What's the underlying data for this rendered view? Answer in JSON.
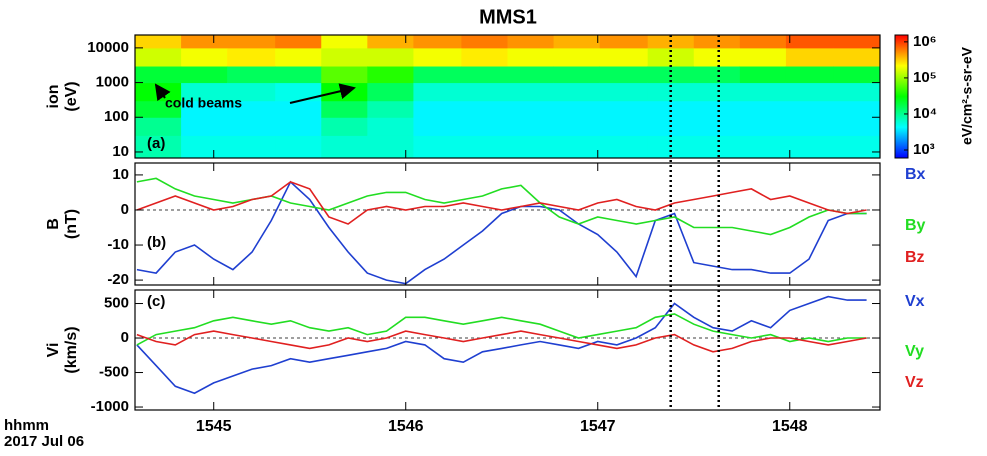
{
  "chart_data": [
    {
      "type": "spectrogram",
      "title": "MMS1",
      "panel_label": "(a)",
      "ylabel": [
        "ion",
        "(eV)"
      ],
      "ylog": true,
      "ylim": [
        6.7,
        23500
      ],
      "yticks": [
        10,
        100,
        1000,
        10000
      ],
      "annotation": "cold beams",
      "zlabel": "eV/cm²-s-sr-eV",
      "zlim": [
        600,
        1550000
      ],
      "zticks": [
        {
          "value": 1000,
          "label": "10³"
        },
        {
          "value": 10000,
          "label": "10⁴"
        },
        {
          "value": 100000,
          "label": "10⁵"
        },
        {
          "value": 1000000,
          "label": "10⁶"
        }
      ],
      "time_bins": [
        44.59,
        44.83,
        45.07,
        45.32,
        45.56,
        45.8,
        46.04,
        46.29,
        46.53,
        46.77,
        47.01,
        47.26,
        47.5,
        47.74,
        47.98,
        48.23,
        48.47
      ],
      "energy_bins": [
        6.7,
        30,
        100,
        300,
        1000,
        3000,
        10000,
        23500
      ],
      "flux": [
        [
          8000,
          10000,
          20000,
          30000,
          20000,
          150000,
          300000
        ],
        [
          5000,
          4000,
          4000,
          6000,
          20000,
          200000,
          500000
        ],
        [
          5000,
          4000,
          4000,
          6000,
          15000,
          250000,
          500000
        ],
        [
          5000,
          4000,
          4000,
          5000,
          15000,
          200000,
          600000
        ],
        [
          6000,
          8000,
          15000,
          30000,
          60000,
          150000,
          200000
        ],
        [
          6000,
          6000,
          8000,
          15000,
          40000,
          150000,
          400000
        ],
        [
          5000,
          4000,
          4000,
          6000,
          15000,
          200000,
          500000
        ],
        [
          5000,
          4000,
          4000,
          6000,
          15000,
          250000,
          600000
        ],
        [
          5000,
          4000,
          4000,
          6000,
          15000,
          200000,
          500000
        ],
        [
          5000,
          4000,
          4000,
          6000,
          15000,
          200000,
          400000
        ],
        [
          5000,
          4000,
          4000,
          6000,
          15000,
          200000,
          500000
        ],
        [
          5000,
          4000,
          4000,
          6000,
          15000,
          150000,
          400000
        ],
        [
          5000,
          4000,
          4000,
          6000,
          15000,
          200000,
          500000
        ],
        [
          5000,
          4000,
          4000,
          6000,
          20000,
          200000,
          600000
        ],
        [
          5000,
          4000,
          4000,
          6000,
          20000,
          300000,
          800000
        ],
        [
          5000,
          4000,
          4000,
          6000,
          20000,
          300000,
          800000
        ]
      ]
    },
    {
      "type": "line",
      "panel_label": "(b)",
      "ylabel": [
        "B",
        "(nT)"
      ],
      "ylim": [
        -21.4,
        13.4
      ],
      "yticks": [
        -20,
        -10,
        0,
        10
      ],
      "zero_line": true,
      "x": [
        44.6,
        44.7,
        44.8,
        44.9,
        45.0,
        45.1,
        45.2,
        45.3,
        45.4,
        45.5,
        45.6,
        45.7,
        45.8,
        45.9,
        46.0,
        46.1,
        46.2,
        46.3,
        46.4,
        46.5,
        46.6,
        46.7,
        46.8,
        46.9,
        47.0,
        47.1,
        47.2,
        47.3,
        47.4,
        47.5,
        47.6,
        47.7,
        47.8,
        47.9,
        48.0,
        48.1,
        48.2,
        48.3,
        48.4
      ],
      "series": [
        {
          "name": "Bx",
          "color": "#1f3fd0",
          "values": [
            -17,
            -18,
            -12,
            -10,
            -14,
            -17,
            -12,
            -3,
            8,
            3,
            -5,
            -12,
            -18,
            -20,
            -21,
            -17,
            -14,
            -10,
            -6,
            -1,
            1,
            1,
            0,
            -4,
            -7,
            -12,
            -19,
            -3,
            -1,
            -15,
            -16,
            -17,
            -17,
            -18,
            -18,
            -14,
            -3,
            -1,
            -1
          ]
        },
        {
          "name": "By",
          "color": "#22dd22",
          "values": [
            8,
            9,
            6,
            4,
            3,
            2,
            3,
            4,
            2,
            1,
            0,
            2,
            4,
            5,
            5,
            3,
            2,
            3,
            4,
            6,
            7,
            2,
            -2,
            -4,
            -2,
            -3,
            -4,
            -3,
            -2,
            -5,
            -5,
            -5,
            -6,
            -7,
            -5,
            -2,
            0,
            -1,
            -1
          ]
        },
        {
          "name": "Bz",
          "color": "#e02020",
          "values": [
            0,
            2,
            4,
            2,
            0,
            1,
            3,
            4,
            8,
            6,
            -2,
            -4,
            0,
            1,
            0,
            1,
            1,
            2,
            1,
            0,
            1,
            2,
            1,
            0,
            2,
            3,
            1,
            0,
            2,
            3,
            4,
            5,
            6,
            3,
            4,
            2,
            0,
            -1,
            0
          ]
        }
      ]
    },
    {
      "type": "line",
      "panel_label": "(c)",
      "ylabel": [
        "Vi",
        "(km/s)"
      ],
      "ylim": [
        -1043,
        696
      ],
      "yticks": [
        -1000,
        -500,
        0,
        500
      ],
      "zero_line": true,
      "xlabel": "hhmm",
      "date": "2017 Jul 06",
      "xlim": [
        44.59,
        48.47
      ],
      "xticks": [
        {
          "value": 45,
          "label": "1545"
        },
        {
          "value": 46,
          "label": "1546"
        },
        {
          "value": 47,
          "label": "1547"
        },
        {
          "value": 48,
          "label": "1548"
        }
      ],
      "vlines": [
        47.38,
        47.63
      ],
      "x": [
        44.6,
        44.7,
        44.8,
        44.9,
        45.0,
        45.1,
        45.2,
        45.3,
        45.4,
        45.5,
        45.6,
        45.7,
        45.8,
        45.9,
        46.0,
        46.1,
        46.2,
        46.3,
        46.4,
        46.5,
        46.6,
        46.7,
        46.8,
        46.9,
        47.0,
        47.1,
        47.2,
        47.3,
        47.4,
        47.5,
        47.6,
        47.7,
        47.8,
        47.9,
        48.0,
        48.1,
        48.2,
        48.3,
        48.4
      ],
      "series": [
        {
          "name": "Vx",
          "color": "#1f3fd0",
          "values": [
            -100,
            -400,
            -700,
            -800,
            -650,
            -550,
            -450,
            -400,
            -300,
            -350,
            -300,
            -250,
            -200,
            -150,
            -50,
            -100,
            -300,
            -350,
            -200,
            -150,
            -100,
            -50,
            -100,
            -150,
            -50,
            -100,
            0,
            150,
            500,
            300,
            150,
            100,
            250,
            150,
            400,
            500,
            600,
            550,
            550
          ]
        },
        {
          "name": "Vy",
          "color": "#22dd22",
          "values": [
            -100,
            50,
            100,
            150,
            250,
            300,
            250,
            200,
            250,
            150,
            100,
            150,
            50,
            100,
            300,
            300,
            250,
            200,
            250,
            300,
            250,
            200,
            100,
            0,
            50,
            100,
            150,
            300,
            350,
            200,
            100,
            50,
            0,
            50,
            -50,
            0,
            -50,
            0,
            0
          ]
        },
        {
          "name": "Vz",
          "color": "#e02020",
          "values": [
            50,
            -50,
            -100,
            50,
            100,
            50,
            0,
            -50,
            -100,
            -150,
            -100,
            0,
            -50,
            0,
            100,
            50,
            0,
            -50,
            0,
            50,
            100,
            50,
            0,
            -50,
            -100,
            -150,
            -100,
            0,
            50,
            -100,
            -200,
            -150,
            -50,
            0,
            0,
            -50,
            -100,
            -50,
            0
          ]
        }
      ]
    }
  ]
}
